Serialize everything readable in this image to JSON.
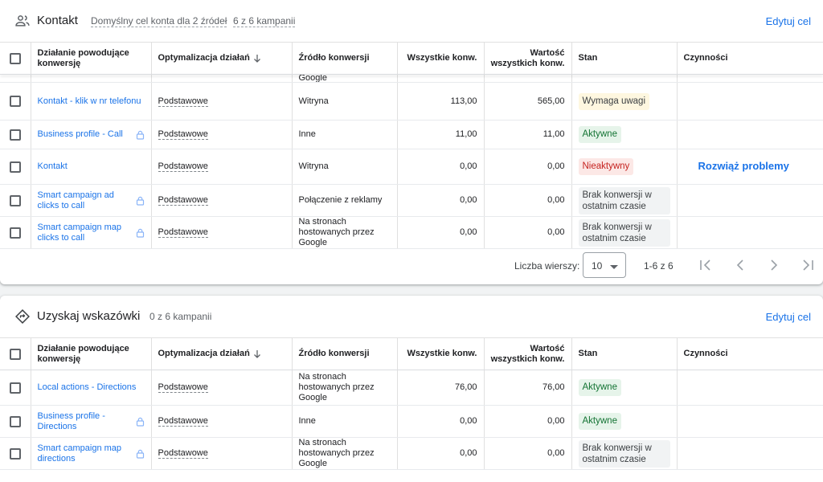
{
  "columns": {
    "action": "Działanie powodujące konwersję",
    "optimization": "Optymalizacja działań",
    "source": "Źródło konwersji",
    "all_conv": "Wszystkie konw.",
    "value": "Wartość wszystkich konw.",
    "status": "Stan",
    "actions": "Czynności"
  },
  "goal1": {
    "title": "Kontakt",
    "default_goal": "Domyślny cel konta dla 2 źródeł",
    "campaigns": "6 z 6 kampanii",
    "edit": "Edytuj cel",
    "partial_row_text": "Google",
    "rows": [
      {
        "name": "Kontakt - klik w nr telefonu",
        "opt": "Podstawowe",
        "source": "Witryna",
        "all": "113,00",
        "value": "565,00",
        "status": "Wymaga uwagi",
        "status_type": "warn",
        "action": "",
        "lock": false
      },
      {
        "name": "Business profile - Call",
        "opt": "Podstawowe",
        "source": "Inne",
        "all": "11,00",
        "value": "11,00",
        "status": "Aktywne",
        "status_type": "ok",
        "action": "",
        "lock": true
      },
      {
        "name": "Kontakt",
        "opt": "Podstawowe",
        "source": "Witryna",
        "all": "0,00",
        "value": "0,00",
        "status": "Nieaktywny",
        "status_type": "err",
        "action": "Rozwiąż problemy",
        "lock": false
      },
      {
        "name": "Smart campaign ad clicks to call",
        "opt": "Podstawowe",
        "source": "Połączenie z reklamy",
        "all": "0,00",
        "value": "0,00",
        "status": "Brak konwersji w ostatnim czasie",
        "status_type": "none",
        "action": "",
        "lock": true
      },
      {
        "name": "Smart campaign map clicks to call",
        "opt": "Podstawowe",
        "source": "Na stronach hostowanych przez Google",
        "all": "0,00",
        "value": "0,00",
        "status": "Brak konwersji w ostatnim czasie",
        "status_type": "none",
        "action": "",
        "lock": true
      }
    ],
    "pager": {
      "rows_label": "Liczba wierszy:",
      "rows_value": "10",
      "range": "1-6 z 6"
    }
  },
  "goal2": {
    "title": "Uzyskaj wskazówki",
    "campaigns": "0 z 6 kampanii",
    "edit": "Edytuj cel",
    "rows": [
      {
        "name": "Local actions - Directions",
        "opt": "Podstawowe",
        "source": "Na stronach hostowanych przez Google",
        "all": "76,00",
        "value": "76,00",
        "status": "Aktywne",
        "status_type": "ok",
        "action": "",
        "lock": false
      },
      {
        "name": "Business profile - Directions",
        "opt": "Podstawowe",
        "source": "Inne",
        "all": "0,00",
        "value": "0,00",
        "status": "Aktywne",
        "status_type": "ok",
        "action": "",
        "lock": true
      },
      {
        "name": "Smart campaign map directions",
        "opt": "Podstawowe",
        "source": "Na stronach hostowanych przez Google",
        "all": "0,00",
        "value": "0,00",
        "status": "Brak konwersji w ostatnim czasie",
        "status_type": "none",
        "action": "",
        "lock": true
      }
    ]
  },
  "icons": {
    "goal1": "people-icon",
    "goal2": "directions-icon",
    "lock": "lock-icon",
    "sort": "arrow-down-icon"
  },
  "colors": {
    "link": "#1a73e8",
    "ok": "#137333",
    "error": "#c5221f",
    "warn_bg": "#fef7e0"
  }
}
